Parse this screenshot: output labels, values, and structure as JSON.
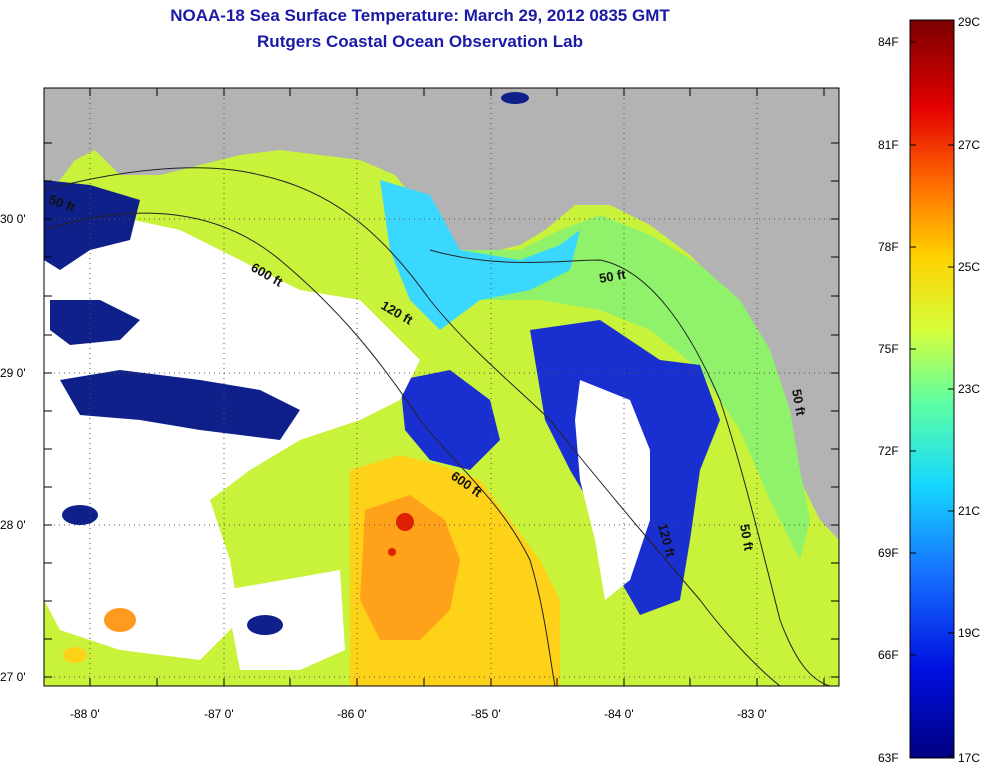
{
  "title": "NOAA-18 Sea Surface Temperature:  March 29, 2012 0835 GMT",
  "subtitle": "Rutgers Coastal Ocean Observation Lab",
  "map": {
    "lat_labels": [
      "27 0'",
      "28 0'",
      "29 0'",
      "30 0'"
    ],
    "lon_labels": [
      "-88 0'",
      "-87 0'",
      "-86 0'",
      "-85 0'",
      "-84 0'",
      "-83 0'"
    ],
    "contours": [
      "50 ft",
      "600 ft",
      "120 ft",
      "50 ft",
      "600 ft",
      "120 ft",
      "50 ft",
      "50 ft"
    ]
  },
  "colorbar": {
    "fahrenheit_labels": [
      "84F",
      "81F",
      "78F",
      "75F",
      "72F",
      "69F",
      "66F",
      "63F"
    ],
    "celsius_labels": [
      "29C",
      "27C",
      "25C",
      "23C",
      "21C",
      "19C",
      "17C"
    ],
    "colors": [
      "#7a0000",
      "#e40000",
      "#ff6a00",
      "#ffd200",
      "#d6ff3a",
      "#5cffa4",
      "#16d8ff",
      "#1670ff",
      "#0010e0",
      "#000080"
    ]
  },
  "colors": {
    "land": "#b3b3b3",
    "nodata": "#ffffff",
    "title": "#1a1aa6"
  }
}
